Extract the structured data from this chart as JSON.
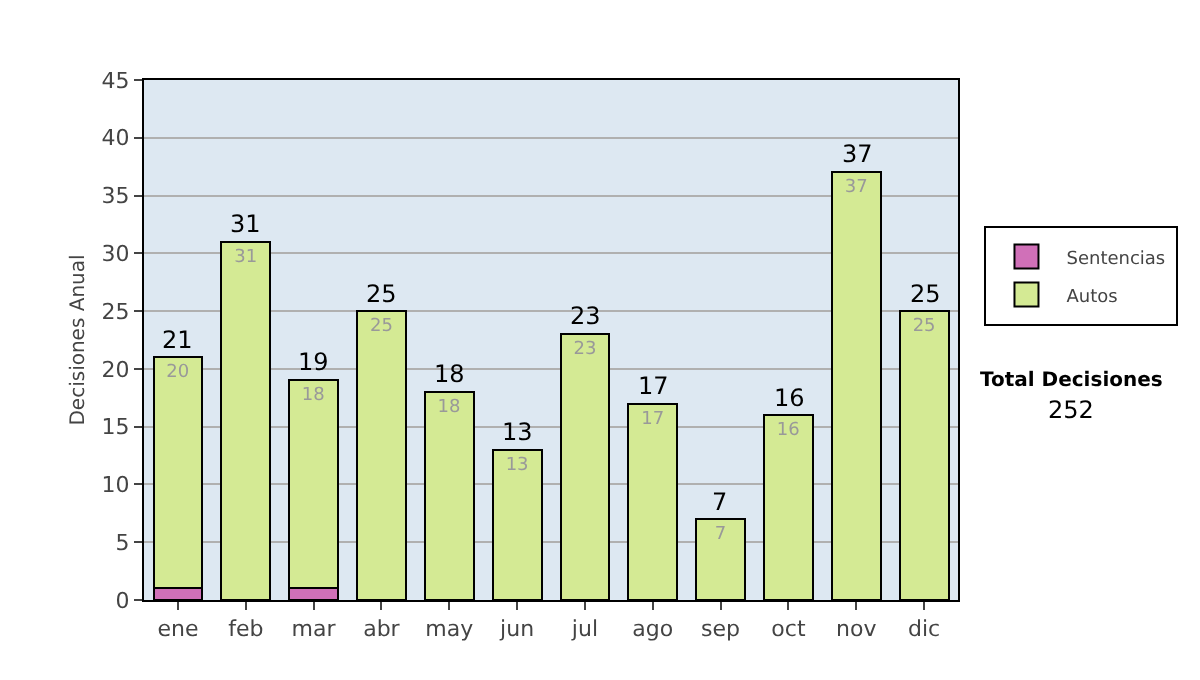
{
  "chart_data": {
    "type": "bar",
    "stacked": true,
    "ylabel": "Decisiones Anual",
    "categories": [
      "ene",
      "feb",
      "mar",
      "abr",
      "may",
      "jun",
      "jul",
      "ago",
      "sep",
      "oct",
      "nov",
      "dic"
    ],
    "series": [
      {
        "name": "Sentencias",
        "color": "#d070b8",
        "values": [
          1,
          0,
          1,
          0,
          0,
          0,
          0,
          0,
          0,
          0,
          0,
          0
        ]
      },
      {
        "name": "Autos",
        "color": "#d4ea94",
        "values": [
          20,
          31,
          18,
          25,
          18,
          13,
          23,
          17,
          7,
          16,
          37,
          25
        ],
        "value_labels": [
          "20",
          "31",
          "18",
          "25",
          "18",
          "13",
          "23",
          "17",
          "7",
          "16",
          "37",
          "25"
        ]
      }
    ],
    "totals": [
      "21",
      "31",
      "19",
      "25",
      "18",
      "13",
      "23",
      "17",
      "7",
      "16",
      "37",
      "25"
    ],
    "ylim": [
      0,
      45
    ],
    "yticks": [
      0,
      5,
      10,
      15,
      20,
      25,
      30,
      35,
      40,
      45
    ],
    "grid": "y",
    "legend": "right",
    "annotations": [
      "Total Decisiones",
      "252"
    ]
  }
}
